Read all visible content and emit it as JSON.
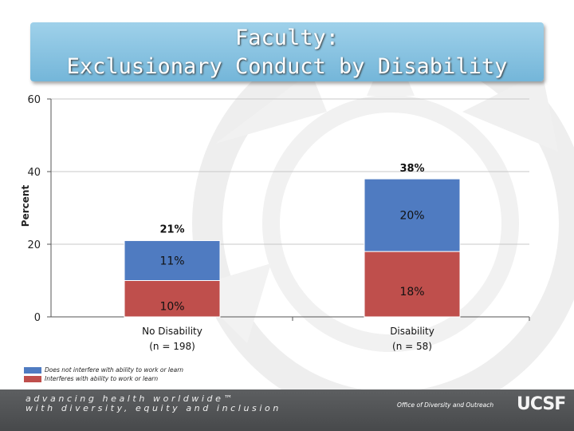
{
  "title": {
    "line1": "Faculty:",
    "line2": "Exclusionary Conduct by Disability"
  },
  "colors": {
    "series_blue": "#4f7bc1",
    "series_red": "#bf4f4c",
    "title_bg": "#8cc6e4",
    "footer_bg": "#545658"
  },
  "chart_data": {
    "type": "bar",
    "stacked": true,
    "categories": [
      "No Disability",
      "Disability"
    ],
    "category_sublabels": [
      "(n = 198)",
      "(n = 58)"
    ],
    "ylabel": "Percent",
    "ylim": [
      0,
      60
    ],
    "yticks": [
      "0",
      "20",
      "40",
      "60"
    ],
    "grid": true,
    "series": [
      {
        "name": "Interferes with ability to work or learn",
        "color": "#bf4f4c",
        "values": [
          10,
          18
        ],
        "labels": [
          "10%",
          "18%"
        ]
      },
      {
        "name": "Does not interfere with ability to work or learn",
        "color": "#4f7bc1",
        "values": [
          11,
          20
        ],
        "labels": [
          "11%",
          "20%"
        ]
      }
    ],
    "totals": [
      21,
      38
    ],
    "total_labels": [
      "21%",
      "38%"
    ],
    "legend": "bottom-left"
  },
  "footer": {
    "tagline_line1": "advancing health worldwide™",
    "tagline_line2": "with diversity, equity and inclusion",
    "office": "Office of Diversity and Outreach",
    "logo": "UCSF"
  }
}
